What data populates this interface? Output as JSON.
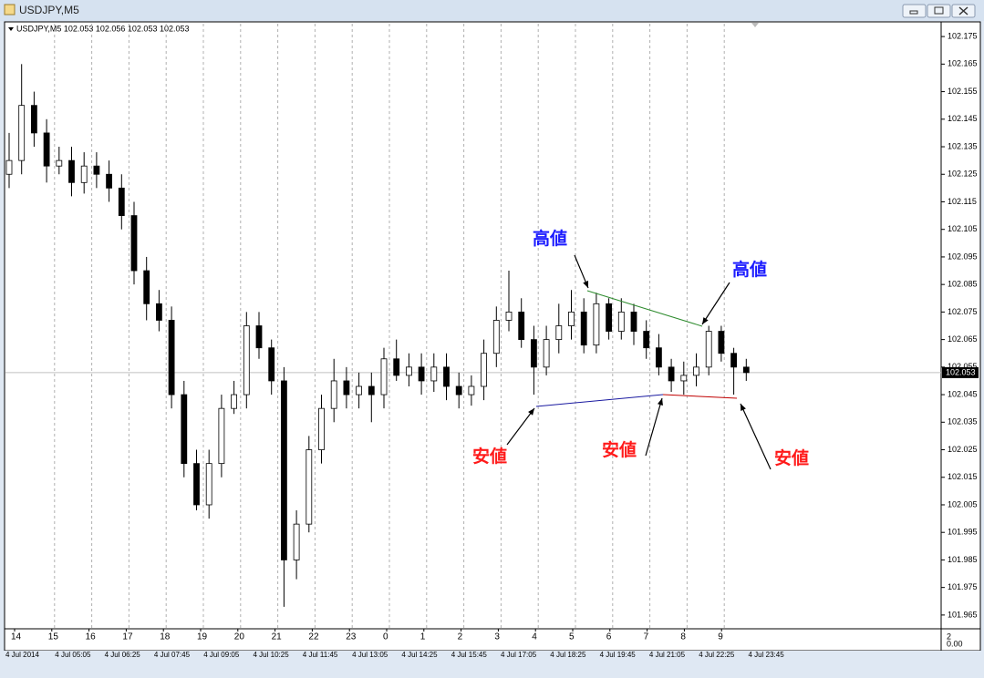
{
  "window": {
    "title": "USDJPY,M5"
  },
  "chart_data": {
    "type": "candlestick",
    "header": "USDJPY,M5  102.053 102.056 102.053 102.053",
    "open": [
      102.125,
      102.13,
      102.15,
      102.14,
      102.128,
      102.13,
      102.122,
      102.128,
      102.125,
      102.12,
      102.11,
      102.09,
      102.078,
      102.072,
      102.045,
      102.02,
      102.005,
      102.02,
      102.04,
      102.045,
      102.07,
      102.062,
      102.05,
      101.985,
      101.998,
      102.025,
      102.04,
      102.05,
      102.045,
      102.048,
      102.045,
      102.058,
      102.052,
      102.055,
      102.05,
      102.055,
      102.048,
      102.045,
      102.048,
      102.06,
      102.072,
      102.075,
      102.065,
      102.055,
      102.065,
      102.07,
      102.075,
      102.063,
      102.078,
      102.068,
      102.075,
      102.068,
      102.062,
      102.055,
      102.05,
      102.052,
      102.055,
      102.068,
      102.06,
      102.055
    ],
    "high": [
      102.14,
      102.165,
      102.155,
      102.145,
      102.135,
      102.135,
      102.133,
      102.133,
      102.13,
      102.125,
      102.115,
      102.095,
      102.083,
      102.077,
      102.05,
      102.025,
      102.025,
      102.045,
      102.05,
      102.075,
      102.075,
      102.065,
      102.055,
      102.003,
      102.03,
      102.045,
      102.058,
      102.055,
      102.053,
      102.053,
      102.062,
      102.065,
      102.06,
      102.06,
      102.06,
      102.06,
      102.053,
      102.052,
      102.065,
      102.077,
      102.09,
      102.08,
      102.07,
      102.07,
      102.078,
      102.083,
      102.08,
      102.082,
      102.08,
      102.08,
      102.078,
      102.072,
      102.067,
      102.058,
      102.057,
      102.06,
      102.07,
      102.07,
      102.062,
      102.058
    ],
    "low": [
      102.12,
      102.125,
      102.135,
      102.122,
      102.125,
      102.117,
      102.118,
      102.12,
      102.115,
      102.105,
      102.085,
      102.072,
      102.068,
      102.04,
      102.015,
      102.003,
      102.0,
      102.015,
      102.038,
      102.04,
      102.058,
      102.045,
      101.968,
      101.978,
      101.995,
      102.02,
      102.035,
      102.04,
      102.04,
      102.035,
      102.04,
      102.05,
      102.048,
      102.045,
      102.046,
      102.043,
      102.04,
      102.041,
      102.043,
      102.055,
      102.068,
      102.062,
      102.045,
      102.052,
      102.06,
      102.065,
      102.06,
      102.06,
      102.065,
      102.065,
      102.063,
      102.058,
      102.052,
      102.046,
      102.045,
      102.048,
      102.052,
      102.057,
      102.045,
      102.05
    ],
    "close": [
      102.13,
      102.15,
      102.14,
      102.128,
      102.13,
      102.122,
      102.128,
      102.125,
      102.12,
      102.11,
      102.09,
      102.078,
      102.072,
      102.045,
      102.02,
      102.005,
      102.02,
      102.04,
      102.045,
      102.07,
      102.062,
      102.05,
      101.985,
      101.998,
      102.025,
      102.04,
      102.05,
      102.045,
      102.048,
      102.045,
      102.058,
      102.052,
      102.055,
      102.05,
      102.055,
      102.048,
      102.045,
      102.048,
      102.06,
      102.072,
      102.075,
      102.065,
      102.055,
      102.065,
      102.07,
      102.075,
      102.063,
      102.078,
      102.068,
      102.075,
      102.068,
      102.062,
      102.055,
      102.05,
      102.052,
      102.055,
      102.068,
      102.06,
      102.055,
      102.053
    ],
    "ylim": [
      101.96,
      102.18
    ],
    "yticks": [
      102.175,
      102.165,
      102.155,
      102.145,
      102.135,
      102.125,
      102.115,
      102.105,
      102.095,
      102.085,
      102.075,
      102.065,
      102.055,
      102.045,
      102.035,
      102.025,
      102.015,
      102.005,
      101.995,
      101.985,
      101.975,
      101.965
    ],
    "last_price": 102.053,
    "last_price_label": "102.053",
    "x_labels": [
      "14",
      "15",
      "16",
      "17",
      "18",
      "19",
      "20",
      "21",
      "22",
      "23",
      "0",
      "1",
      "2",
      "3",
      "4",
      "5",
      "6",
      "7",
      "8",
      "9"
    ],
    "date_labels": [
      "4 Jul 2014",
      "4 Jul 05:05",
      "4 Jul 06:25",
      "4 Jul 07:45",
      "4 Jul 09:05",
      "4 Jul 10:25",
      "4 Jul 11:45",
      "4 Jul 13:05",
      "4 Jul 14:25",
      "4 Jul 15:45",
      "4 Jul 17:05",
      "4 Jul 18:25",
      "4 Jul 19:45",
      "4 Jul 21:05",
      "4 Jul 22:25",
      "4 Jul 23:45"
    ],
    "corner_labels": [
      "2",
      "0.00"
    ],
    "annotations": [
      {
        "text": "高値",
        "color": "#1a1aff"
      },
      {
        "text": "高値",
        "color": "#1a1aff"
      },
      {
        "text": "安値",
        "color": "#ff1a1a"
      },
      {
        "text": "安値",
        "color": "#ff1a1a"
      },
      {
        "text": "安値",
        "color": "#ff1a1a"
      }
    ]
  }
}
